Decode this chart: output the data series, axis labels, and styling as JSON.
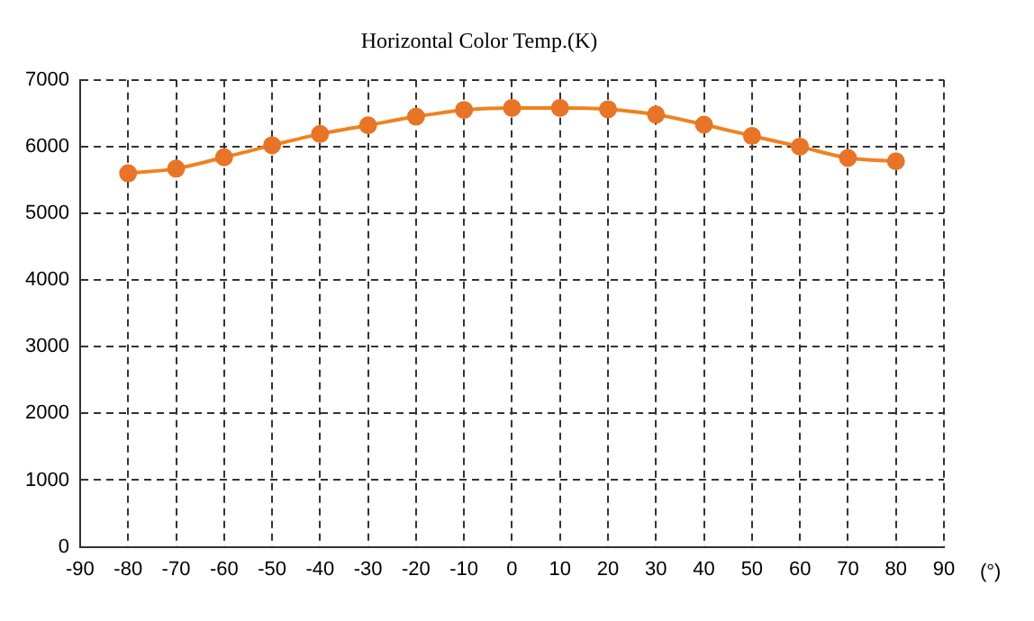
{
  "chart_data": {
    "type": "line",
    "title": "Horizontal Color Temp.(K)",
    "xlabel": "(°)",
    "x": [
      -80,
      -70,
      -60,
      -50,
      -40,
      -30,
      -20,
      -10,
      0,
      10,
      20,
      30,
      40,
      50,
      60,
      70,
      80
    ],
    "series": [
      {
        "color": "#f0821e",
        "values": [
          5600,
          5670,
          5840,
          6020,
          6190,
          6320,
          6450,
          6550,
          6580,
          6580,
          6560,
          6480,
          6330,
          6160,
          6000,
          5830,
          5780
        ]
      }
    ],
    "xlim": [
      -90,
      90
    ],
    "xticks": [
      -90,
      -80,
      -70,
      -60,
      -50,
      -40,
      -30,
      -20,
      -10,
      0,
      10,
      20,
      30,
      40,
      50,
      60,
      70,
      80,
      90
    ],
    "ylim": [
      0,
      7000
    ],
    "yticks": [
      0,
      1000,
      2000,
      3000,
      4000,
      5000,
      6000,
      7000
    ],
    "grid": true,
    "legend": false,
    "marker": "circle",
    "line_style": "solid"
  }
}
